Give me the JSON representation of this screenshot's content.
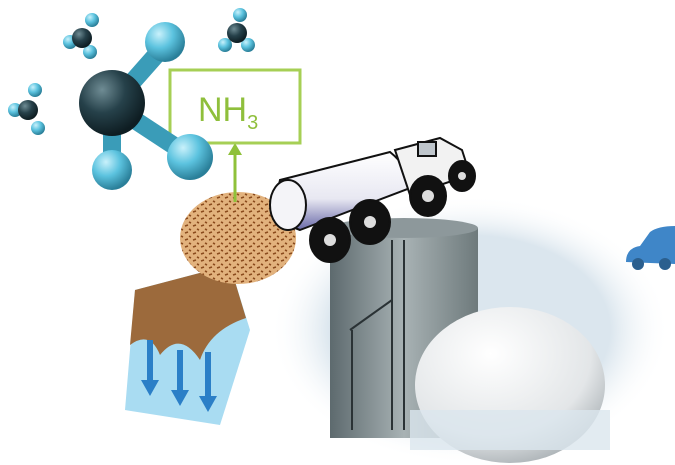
{
  "label": {
    "main": "NH",
    "subscript": "3"
  }
}
